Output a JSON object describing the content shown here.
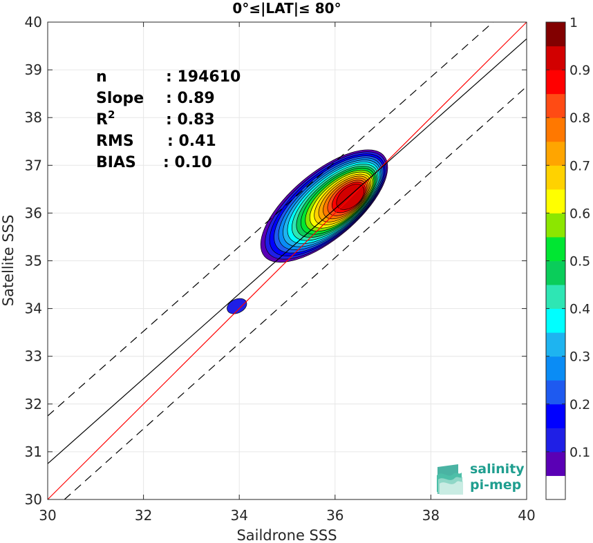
{
  "chart_data": {
    "type": "contour-scatter",
    "title": "0°≤|LAT|≤ 80°",
    "xlabel": "Saildrone SSS",
    "ylabel": "Satellite SSS",
    "xlim": [
      30,
      40
    ],
    "ylim": [
      30,
      40
    ],
    "x_ticks": [
      30,
      32,
      34,
      36,
      38,
      40
    ],
    "y_ticks": [
      30,
      31,
      32,
      33,
      34,
      35,
      36,
      37,
      38,
      39,
      40
    ],
    "grid": true,
    "stats": [
      {
        "key": "n",
        "value": ": 194610"
      },
      {
        "key": "Slope",
        "value": ": 0.89"
      },
      {
        "key": "R",
        "sup": "2",
        "value": ": 0.83"
      },
      {
        "key": "RMS",
        "value": ": 0.41"
      },
      {
        "key": "BIAS",
        "value": ": 0.10"
      }
    ],
    "lines": {
      "one_to_one": {
        "color": "#ff0000",
        "from": [
          30,
          30
        ],
        "to": [
          40,
          40
        ]
      },
      "fit": {
        "color": "#000000",
        "from": [
          30,
          30.75
        ],
        "to": [
          40,
          39.65
        ]
      },
      "upper_bound": {
        "color": "#000000",
        "dash": true,
        "from": [
          30,
          31.75
        ],
        "to": [
          39.3,
          40
        ]
      },
      "lower_bound": {
        "color": "#000000",
        "dash": true,
        "from": [
          30.35,
          30
        ],
        "to": [
          40,
          38.65
        ]
      }
    },
    "density_peaks": [
      {
        "x": 36.35,
        "y": 36.35,
        "max_level": 1.0
      },
      {
        "x": 33.95,
        "y": 34.05,
        "max_level": 0.1
      }
    ],
    "colorbar": {
      "ticks": [
        0.1,
        0.2,
        0.3,
        0.4,
        0.5,
        0.6,
        0.7,
        0.8,
        0.9,
        1
      ],
      "tick_labels": [
        "0.1",
        "0.2",
        "0.3",
        "0.4",
        "0.5",
        "0.6",
        "0.7",
        "0.8",
        "0.9",
        "1"
      ],
      "colors": [
        "#ffffff",
        "#5a00b5",
        "#1f1fe6",
        "#0000ff",
        "#1e5af0",
        "#0a8cf5",
        "#1eb4f0",
        "#00ffff",
        "#2ee6b4",
        "#0acd5a",
        "#00e632",
        "#8ce600",
        "#ffff00",
        "#ffd200",
        "#ffa500",
        "#ff7800",
        "#ff4b14",
        "#ff0000",
        "#d20000",
        "#820000"
      ]
    }
  },
  "logo": {
    "line1": "salinity",
    "line2": "pi-mep"
  }
}
